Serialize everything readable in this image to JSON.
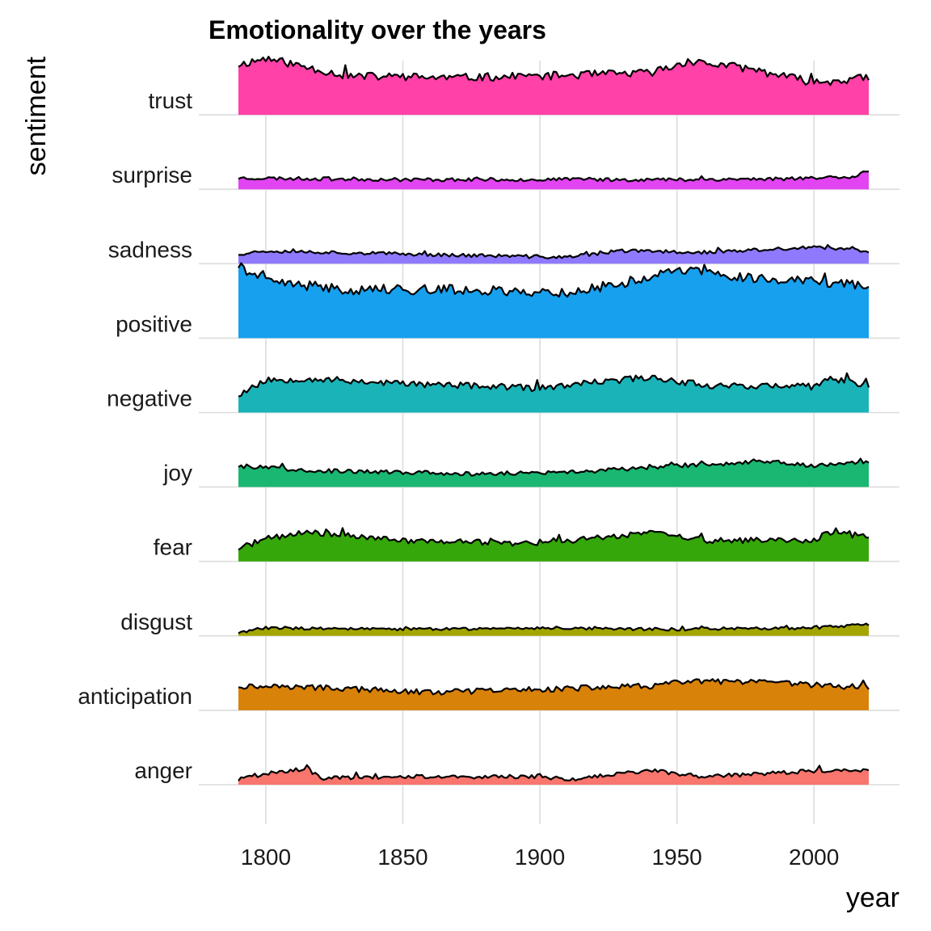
{
  "chart_data": {
    "type": "area",
    "title": "Emotionality over the years",
    "xlabel": "year",
    "ylabel": "sentiment",
    "xlim": [
      1790,
      2020
    ],
    "x_ticks": [
      1800,
      1850,
      1900,
      1950,
      2000
    ],
    "x_tick_labels": [
      "1800",
      "1850",
      "1900",
      "1950",
      "2000"
    ],
    "grid": "vertical major lines and horizontal baselines",
    "legend": "none",
    "series": [
      {
        "name": "trust",
        "color": "#FF41A8",
        "base": 62,
        "amp": 5,
        "seed": 11,
        "keypoints": [
          [
            1790,
            62
          ],
          [
            1800,
            70
          ],
          [
            1830,
            48
          ],
          [
            1870,
            46
          ],
          [
            1900,
            48
          ],
          [
            1940,
            52
          ],
          [
            1955,
            66
          ],
          [
            1975,
            58
          ],
          [
            2000,
            40
          ],
          [
            2020,
            46
          ]
        ]
      },
      {
        "name": "surprise",
        "color": "#E144F0",
        "base": 14,
        "amp": 2.2,
        "seed": 23,
        "keypoints": [
          [
            1790,
            14
          ],
          [
            1850,
            12
          ],
          [
            1900,
            12
          ],
          [
            1950,
            12
          ],
          [
            1990,
            13
          ],
          [
            2015,
            16
          ],
          [
            2020,
            24
          ]
        ]
      },
      {
        "name": "sadness",
        "color": "#8F7AFF",
        "base": 14,
        "amp": 2.2,
        "seed": 37,
        "keypoints": [
          [
            1790,
            12
          ],
          [
            1800,
            16
          ],
          [
            1850,
            12
          ],
          [
            1910,
            8
          ],
          [
            1930,
            16
          ],
          [
            1960,
            14
          ],
          [
            2000,
            20
          ],
          [
            2020,
            16
          ]
        ]
      },
      {
        "name": "positive",
        "color": "#17A0EE",
        "base": 62,
        "amp": 6,
        "seed": 41,
        "keypoints": [
          [
            1790,
            90
          ],
          [
            1800,
            70
          ],
          [
            1830,
            60
          ],
          [
            1870,
            60
          ],
          [
            1910,
            56
          ],
          [
            1930,
            68
          ],
          [
            1950,
            84
          ],
          [
            1980,
            74
          ],
          [
            2020,
            66
          ]
        ]
      },
      {
        "name": "negative",
        "color": "#1AB4B8",
        "base": 32,
        "amp": 4,
        "seed": 53,
        "keypoints": [
          [
            1790,
            22
          ],
          [
            1800,
            40
          ],
          [
            1815,
            42
          ],
          [
            1850,
            36
          ],
          [
            1900,
            30
          ],
          [
            1940,
            44
          ],
          [
            1960,
            34
          ],
          [
            2000,
            32
          ],
          [
            2005,
            42
          ],
          [
            2020,
            34
          ]
        ]
      },
      {
        "name": "joy",
        "color": "#19B771",
        "base": 20,
        "amp": 2.5,
        "seed": 67,
        "keypoints": [
          [
            1790,
            26
          ],
          [
            1820,
            20
          ],
          [
            1880,
            16
          ],
          [
            1910,
            18
          ],
          [
            1940,
            24
          ],
          [
            1985,
            32
          ],
          [
            2000,
            26
          ],
          [
            2020,
            32
          ]
        ]
      },
      {
        "name": "fear",
        "color": "#35A70A",
        "base": 24,
        "amp": 3.5,
        "seed": 71,
        "keypoints": [
          [
            1790,
            16
          ],
          [
            1800,
            28
          ],
          [
            1815,
            36
          ],
          [
            1850,
            26
          ],
          [
            1900,
            22
          ],
          [
            1940,
            36
          ],
          [
            1960,
            26
          ],
          [
            2000,
            26
          ],
          [
            2005,
            36
          ],
          [
            2020,
            30
          ]
        ]
      },
      {
        "name": "disgust",
        "color": "#A3A500",
        "base": 10,
        "amp": 1.8,
        "seed": 83,
        "keypoints": [
          [
            1790,
            4
          ],
          [
            1800,
            10
          ],
          [
            1850,
            8
          ],
          [
            1900,
            10
          ],
          [
            1950,
            8
          ],
          [
            2000,
            10
          ],
          [
            2020,
            14
          ]
        ]
      },
      {
        "name": "anticipation",
        "color": "#D8820A",
        "base": 26,
        "amp": 3.5,
        "seed": 97,
        "keypoints": [
          [
            1790,
            30
          ],
          [
            1820,
            28
          ],
          [
            1860,
            22
          ],
          [
            1900,
            26
          ],
          [
            1940,
            30
          ],
          [
            1955,
            36
          ],
          [
            1985,
            34
          ],
          [
            2020,
            28
          ]
        ]
      },
      {
        "name": "anger",
        "color": "#F8766D",
        "base": 12,
        "amp": 2.5,
        "seed": 101,
        "keypoints": [
          [
            1790,
            6
          ],
          [
            1800,
            14
          ],
          [
            1815,
            20
          ],
          [
            1820,
            8
          ],
          [
            1850,
            10
          ],
          [
            1900,
            10
          ],
          [
            1910,
            6
          ],
          [
            1940,
            18
          ],
          [
            1960,
            10
          ],
          [
            2005,
            18
          ],
          [
            2020,
            18
          ]
        ]
      }
    ]
  }
}
